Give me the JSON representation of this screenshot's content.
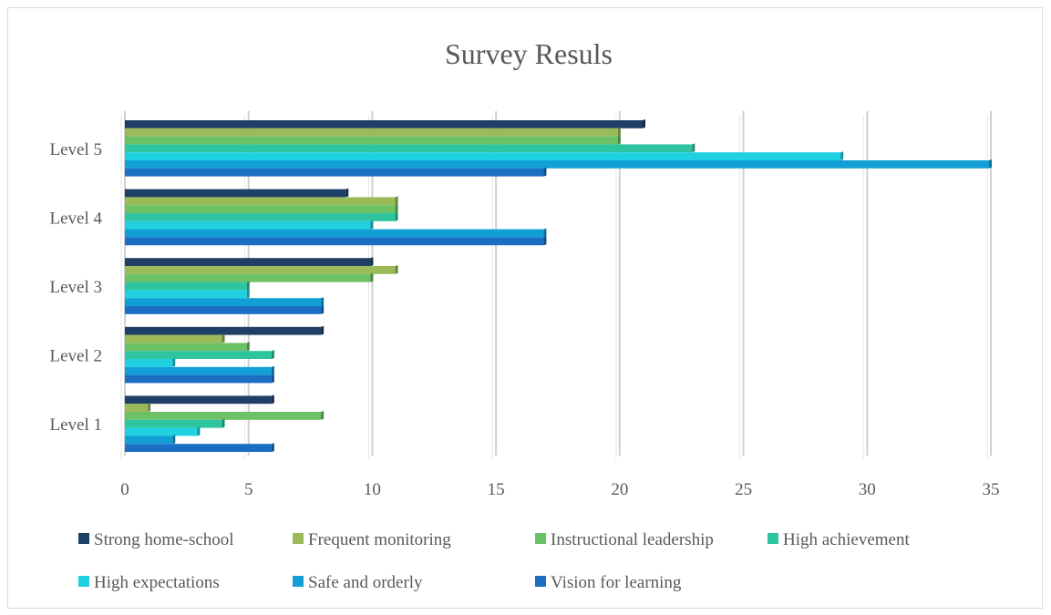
{
  "chart_data": {
    "type": "bar",
    "orientation": "horizontal",
    "title": "Survey Resuls",
    "categories": [
      "Level 1",
      "Level 2",
      "Level 3",
      "Level 4",
      "Level 5"
    ],
    "xlim": [
      0,
      35
    ],
    "x_ticks": [
      "0",
      "5",
      "10",
      "15",
      "20",
      "25",
      "30",
      "35"
    ],
    "grid": "vertical",
    "legend_position": "bottom",
    "series": [
      {
        "name": "Strong home-school",
        "color": "#1f3f66",
        "values": [
          6,
          8,
          10,
          9,
          21
        ]
      },
      {
        "name": "Frequent monitoring",
        "color": "#9bbb59",
        "values": [
          1,
          4,
          11,
          11,
          20
        ]
      },
      {
        "name": "Instructional leadership",
        "color": "#6cc165",
        "values": [
          8,
          5,
          10,
          11,
          20
        ]
      },
      {
        "name": "High achievement",
        "color": "#2ec4a0",
        "values": [
          4,
          6,
          5,
          11,
          23
        ]
      },
      {
        "name": "High expectations",
        "color": "#1fd0e0",
        "values": [
          3,
          2,
          5,
          10,
          29
        ]
      },
      {
        "name": "Safe and orderly",
        "color": "#129fd6",
        "values": [
          2,
          6,
          8,
          17,
          35
        ]
      },
      {
        "name": "Vision for learning",
        "color": "#1a6fc4",
        "values": [
          6,
          6,
          8,
          17,
          17
        ]
      }
    ]
  }
}
